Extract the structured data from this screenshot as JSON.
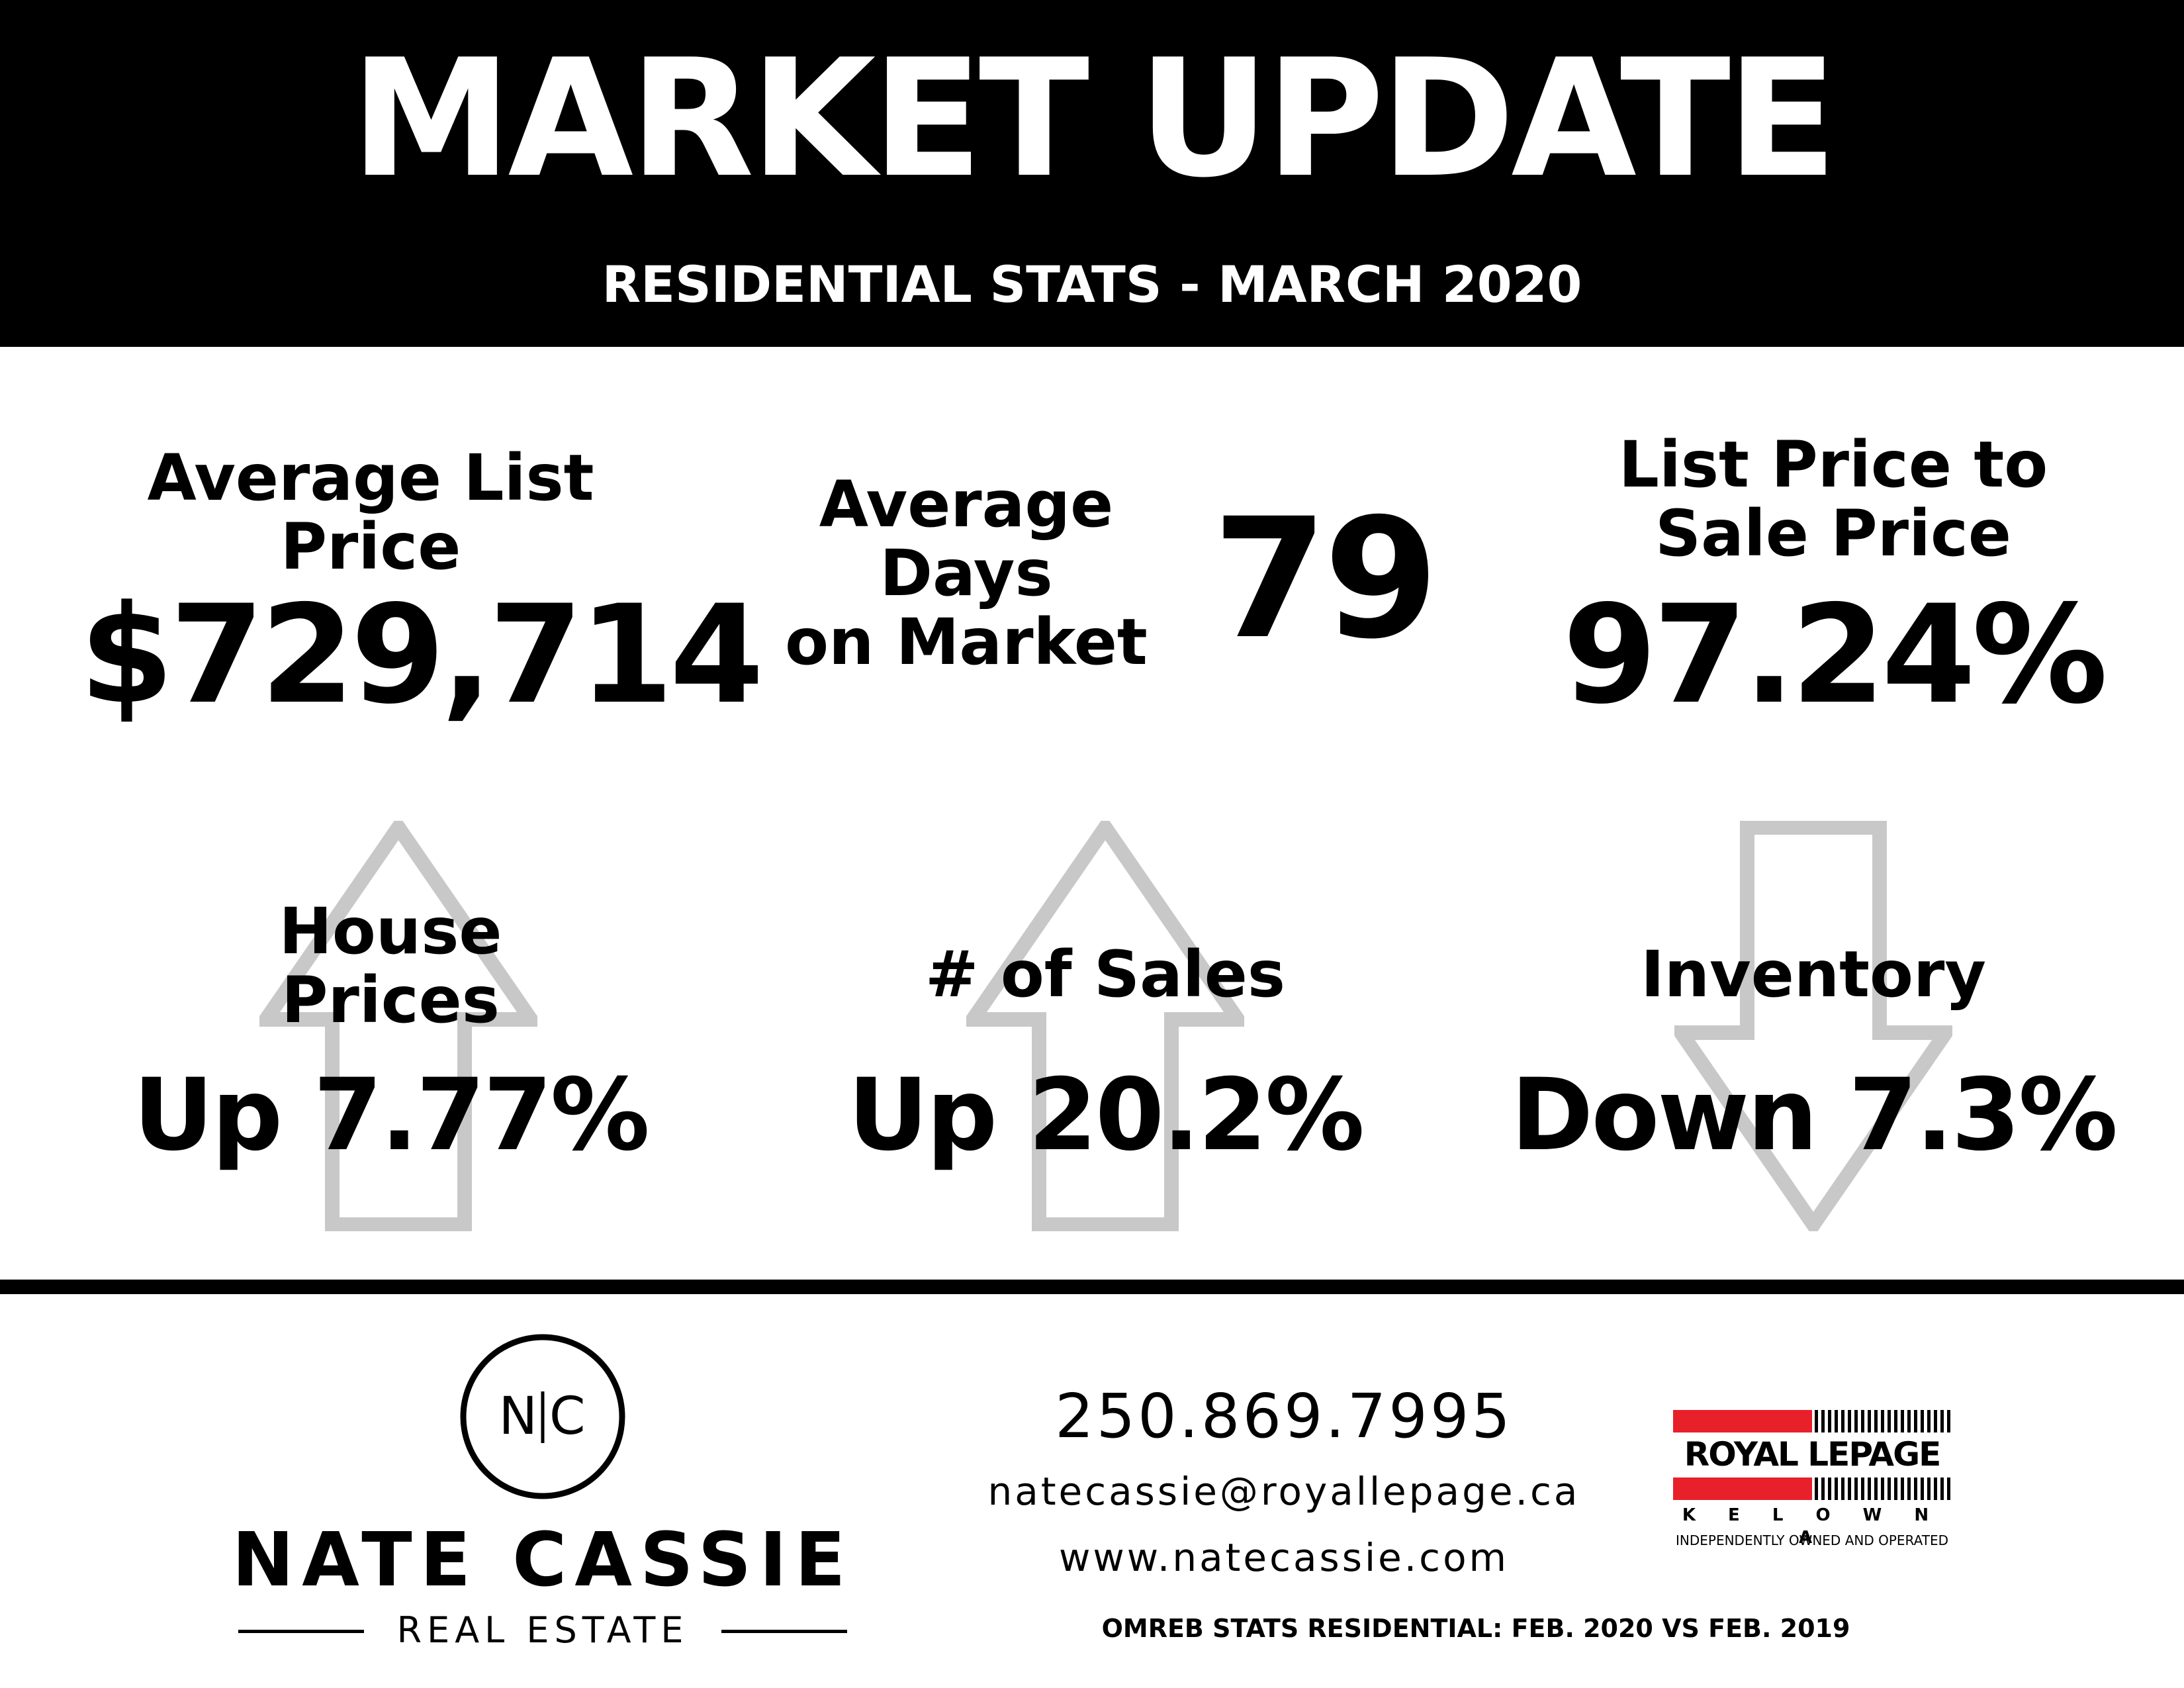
{
  "header": {
    "title": "MARKET UPDATE",
    "subtitle": "RESIDENTIAL STATS - MARCH 2020"
  },
  "stats": {
    "avg_list_price": {
      "label_line1": "Average List",
      "label_line2": "Price",
      "value": "$729,714"
    },
    "avg_days": {
      "label_line1": "Average",
      "label_line2": "Days",
      "label_line3": "on Market",
      "value": "79"
    },
    "list_to_sale": {
      "label_line1": "List Price to",
      "label_line2": "Sale Price",
      "value": "97.24%"
    }
  },
  "trends": {
    "house_prices": {
      "label_line1": "House",
      "label_line2": "Prices",
      "direction_word": "Up",
      "value": "7.77%",
      "arrow": "up-arrow-icon"
    },
    "sales": {
      "label": "# of Sales",
      "direction_word": "Up",
      "value": "20.2%",
      "arrow": "up-arrow-icon"
    },
    "inventory": {
      "label": "Inventory",
      "direction_word": "Down",
      "value": "7.3%",
      "arrow": "down-arrow-icon"
    }
  },
  "colors": {
    "arrow_fill": "#c8c8c8",
    "brand_red": "#e8202a"
  },
  "footer": {
    "agent_monogram_left": "N",
    "agent_monogram_right": "C",
    "agent_name": "NATE CASSIE",
    "agent_tagline": "REAL ESTATE",
    "phone": "250.869.7995",
    "email": "natecassie@royallepage.ca",
    "website": "www.natecassie.com",
    "source_note": "OMREB STATS RESIDENTIAL: FEB. 2020 VS FEB. 2019",
    "brokerage_name": "ROYAL LEPAGE",
    "brokerage_city": "K E L O W N A",
    "brokerage_tagline": "INDEPENDENTLY OWNED AND OPERATED"
  }
}
